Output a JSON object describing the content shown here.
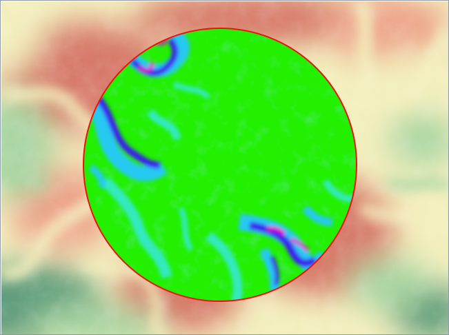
{
  "map": {
    "basemap_layer": "elevation-hillshade",
    "analysis_layer": "slope-in-circular-window",
    "colors": {
      "elev_low": "#5e9c7c",
      "elev_midlow": "#a9d6a3",
      "elev_mid": "#f3efbd",
      "elev_midhigh": "#eda389",
      "elev_high": "#d77a6a",
      "slope_flat": "#22f000",
      "slope_low": "#36e9bf",
      "slope_mid": "#25c9f2",
      "slope_high": "#3b1cf0",
      "slope_steep": "#e400c4",
      "circle_stroke": "#ee1111",
      "frame_border": "#8d99a8"
    }
  }
}
